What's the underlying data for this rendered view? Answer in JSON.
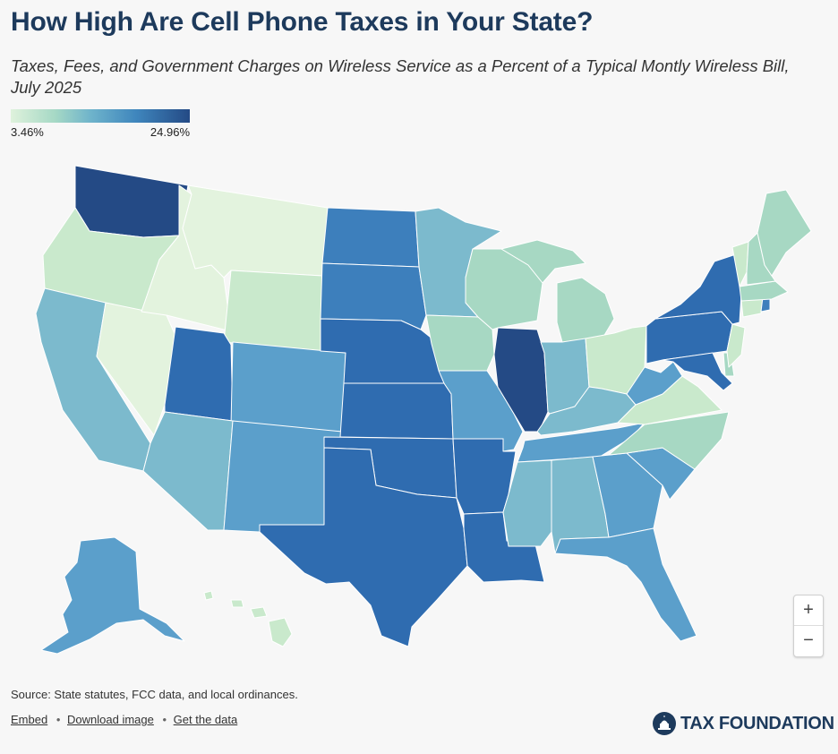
{
  "header": {
    "title": "How High Are Cell Phone Taxes in Your State?",
    "subtitle": "Taxes, Fees, and Government Charges on Wireless Service as a Percent of a Typical Montly Wireless Bill, July 2025"
  },
  "legend": {
    "min_label": "3.46%",
    "max_label": "24.96%"
  },
  "colors": {
    "tier1": "#e3f3de",
    "tier2": "#c9e9cc",
    "tier3": "#a7d8c3",
    "tier4": "#7cbacd",
    "tier5": "#5b9fcb",
    "tier6": "#3d7fbc",
    "tier7": "#2f6cb0",
    "tier8": "#244a85",
    "background": "#f7f7f7",
    "title": "#1d3a5c"
  },
  "zoom": {
    "in": "+",
    "out": "−"
  },
  "footer": {
    "source": "Source: State statutes, FCC data, and local ordinances.",
    "embed": "Embed",
    "download": "Download image",
    "get_data": "Get the data",
    "sep": "•",
    "brand": "TAX FOUNDATION"
  }
}
